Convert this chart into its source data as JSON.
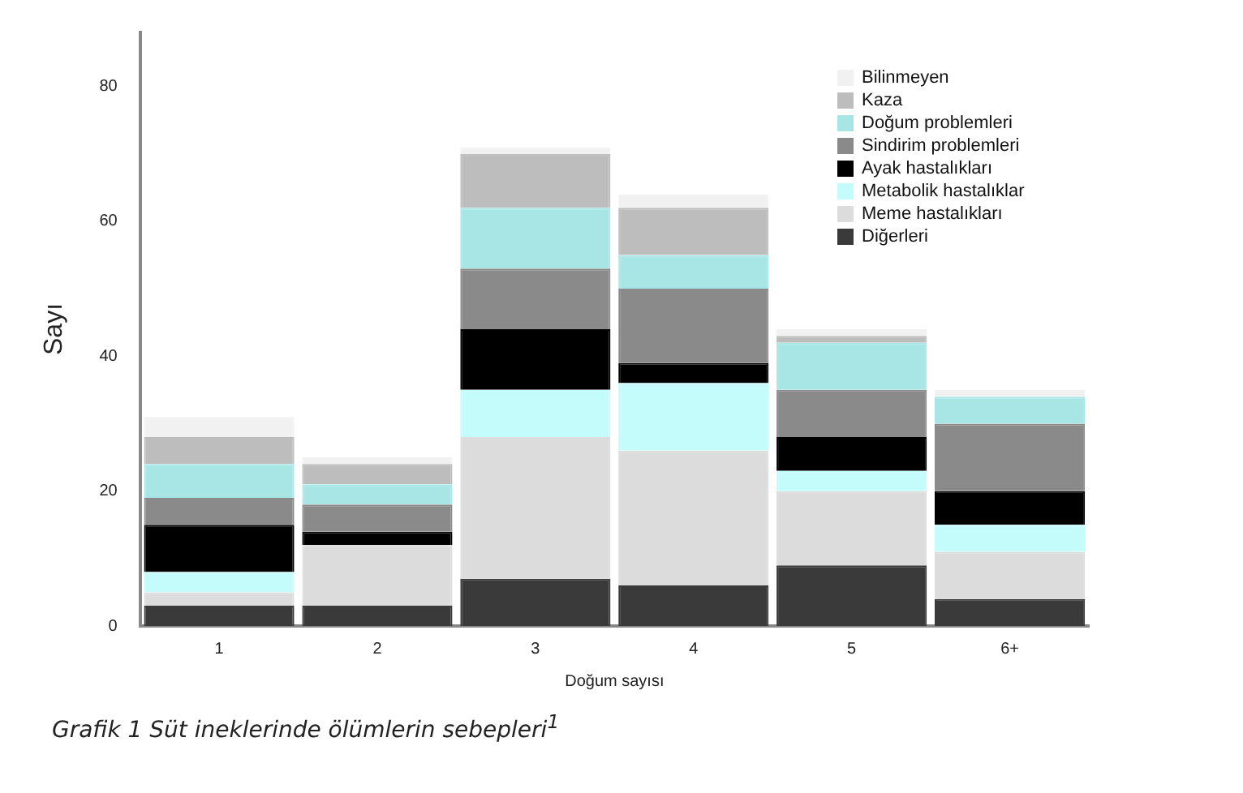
{
  "chart_data": {
    "type": "bar",
    "stacked": true,
    "xlabel": "Doğum sayısı",
    "ylabel": "Sayı",
    "categories": [
      "1",
      "2",
      "3",
      "4",
      "5",
      "6+"
    ],
    "series": [
      {
        "name": "Diğerleri",
        "color": "#3a3a3a",
        "values": [
          3,
          3,
          7,
          6,
          9,
          4
        ]
      },
      {
        "name": "Meme hastalıkları",
        "color": "#dcdcdc",
        "values": [
          2,
          9,
          21,
          20,
          11,
          7
        ]
      },
      {
        "name": "Metabolik hastalıklar",
        "color": "#c4fcfc",
        "values": [
          3,
          0,
          7,
          10,
          3,
          4
        ]
      },
      {
        "name": "Ayak hastalıkları",
        "color": "#000000",
        "values": [
          7,
          2,
          9,
          3,
          5,
          5
        ]
      },
      {
        "name": "Sindirim problemleri",
        "color": "#8a8a8a",
        "values": [
          4,
          4,
          9,
          11,
          7,
          10
        ]
      },
      {
        "name": "Doğum problemleri",
        "color": "#a8e6e6",
        "values": [
          5,
          3,
          9,
          5,
          7,
          4
        ]
      },
      {
        "name": "Kaza",
        "color": "#bdbdbd",
        "values": [
          4,
          3,
          8,
          7,
          1,
          0
        ]
      },
      {
        "name": "Bilinmeyen",
        "color": "#f1f1f1",
        "values": [
          3,
          1,
          1,
          2,
          1,
          1
        ]
      }
    ],
    "ylim": [
      0,
      88
    ],
    "yticks": [
      0,
      20,
      40,
      60,
      80
    ],
    "grid": false,
    "legend": "top right",
    "annotations": [
      "Grafik 1 Süt ineklerinde ölümlerin sebepleri$^{1}$"
    ]
  }
}
